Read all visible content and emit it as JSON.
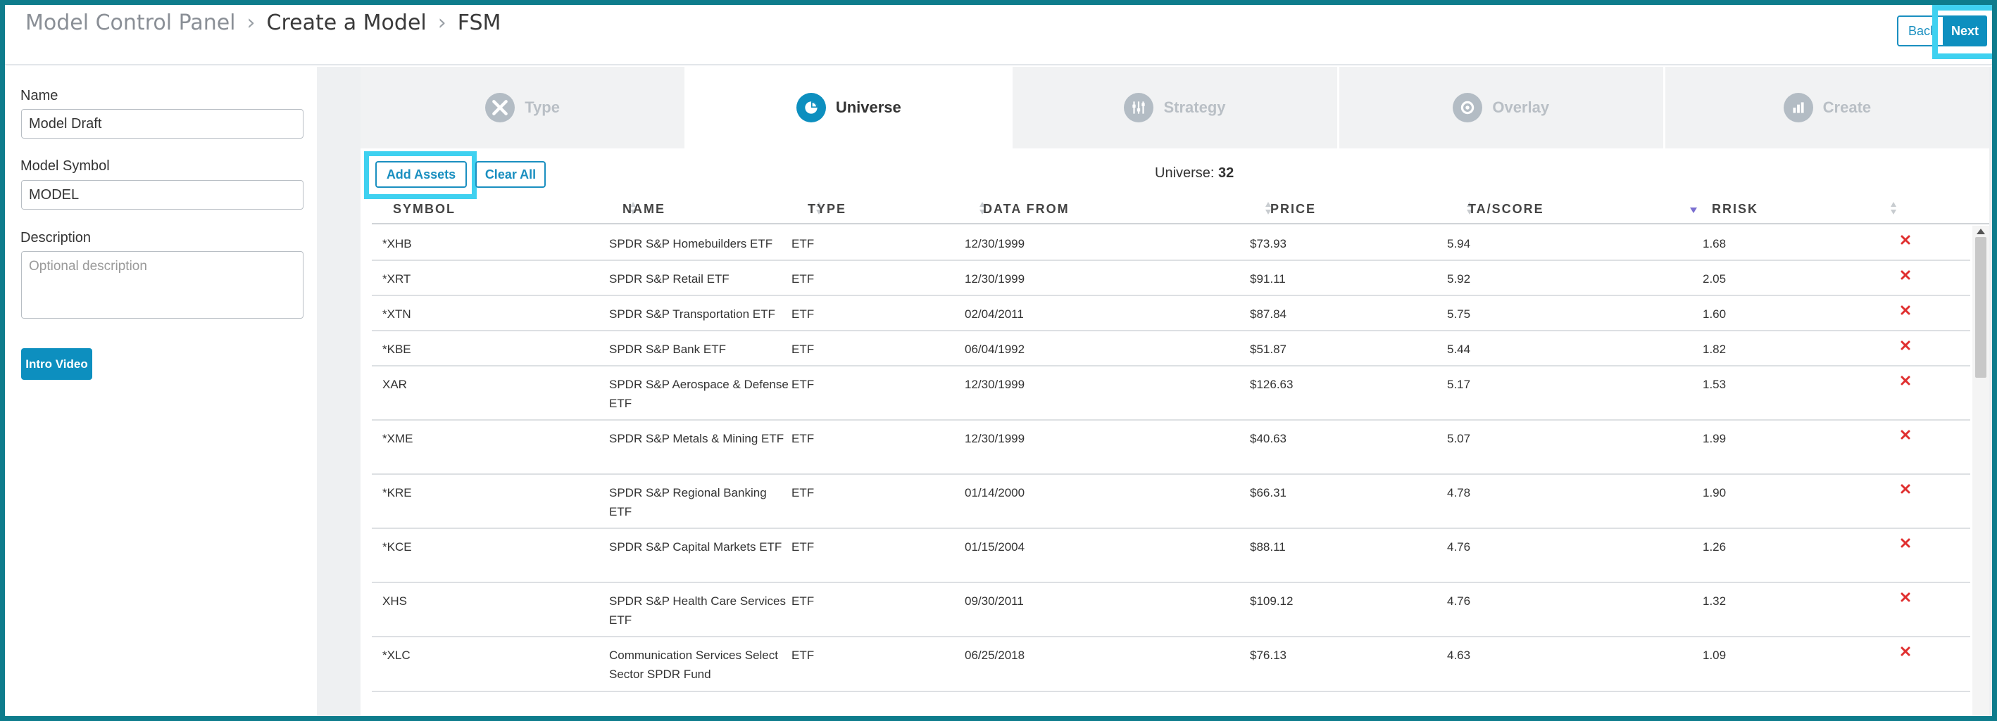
{
  "breadcrumb": [
    "Model Control Panel",
    "Create a Model",
    "FSM"
  ],
  "header": {
    "back_label": "Back",
    "next_label": "Next"
  },
  "form": {
    "name_label": "Name",
    "name_value": "Model Draft",
    "symbol_label": "Model Symbol",
    "symbol_value": "MODEL",
    "description_label": "Description",
    "description_placeholder": "Optional description",
    "intro_video_label": "Intro Video"
  },
  "tabs": [
    {
      "label": "Type",
      "icon": "tools-icon",
      "active": false
    },
    {
      "label": "Universe",
      "icon": "pie-chart-icon",
      "active": true
    },
    {
      "label": "Strategy",
      "icon": "sliders-icon",
      "active": false
    },
    {
      "label": "Overlay",
      "icon": "gear-icon",
      "active": false
    },
    {
      "label": "Create",
      "icon": "bar-chart-icon",
      "active": false
    }
  ],
  "toolbar": {
    "add_assets_label": "Add Assets",
    "clear_all_label": "Clear All",
    "universe_label": "Universe:",
    "universe_count": "32"
  },
  "table": {
    "columns": [
      "SYMBOL",
      "NAME",
      "TYPE",
      "DATA FROM",
      "PRICE",
      "TA/SCORE",
      "RRISK"
    ],
    "rows": [
      {
        "symbol": "*XHB",
        "name": "SPDR S&P Homebuilders ETF",
        "type": "ETF",
        "data_from": "12/30/1999",
        "price": "$73.93",
        "score": "5.94",
        "rrisk": "1.68"
      },
      {
        "symbol": "*XRT",
        "name": "SPDR S&P Retail ETF",
        "type": "ETF",
        "data_from": "12/30/1999",
        "price": "$91.11",
        "score": "5.92",
        "rrisk": "2.05"
      },
      {
        "symbol": "*XTN",
        "name": "SPDR S&P Transportation ETF",
        "type": "ETF",
        "data_from": "02/04/2011",
        "price": "$87.84",
        "score": "5.75",
        "rrisk": "1.60"
      },
      {
        "symbol": "*KBE",
        "name": "SPDR S&P Bank ETF",
        "type": "ETF",
        "data_from": "06/04/1992",
        "price": "$51.87",
        "score": "5.44",
        "rrisk": "1.82"
      },
      {
        "symbol": "XAR",
        "name": "SPDR S&P Aerospace & Defense ETF",
        "type": "ETF",
        "data_from": "12/30/1999",
        "price": "$126.63",
        "score": "5.17",
        "rrisk": "1.53"
      },
      {
        "symbol": "*XME",
        "name": "SPDR S&P Metals & Mining ETF",
        "type": "ETF",
        "data_from": "12/30/1999",
        "price": "$40.63",
        "score": "5.07",
        "rrisk": "1.99"
      },
      {
        "symbol": "*KRE",
        "name": "SPDR S&P Regional Banking ETF",
        "type": "ETF",
        "data_from": "01/14/2000",
        "price": "$66.31",
        "score": "4.78",
        "rrisk": "1.90"
      },
      {
        "symbol": "*KCE",
        "name": "SPDR S&P Capital Markets ETF",
        "type": "ETF",
        "data_from": "01/15/2004",
        "price": "$88.11",
        "score": "4.76",
        "rrisk": "1.26"
      },
      {
        "symbol": "XHS",
        "name": "SPDR S&P Health Care Services ETF",
        "type": "ETF",
        "data_from": "09/30/2011",
        "price": "$109.12",
        "score": "4.76",
        "rrisk": "1.32"
      },
      {
        "symbol": "*XLC",
        "name": "Communication Services Select Sector SPDR Fund",
        "type": "ETF",
        "data_from": "06/25/2018",
        "price": "$76.13",
        "score": "4.63",
        "rrisk": "1.09"
      }
    ]
  },
  "colors": {
    "accent": "#0d8fbf",
    "highlight": "#3fd1f0",
    "delete": "#e03030",
    "frame": "#0e7c8c"
  }
}
